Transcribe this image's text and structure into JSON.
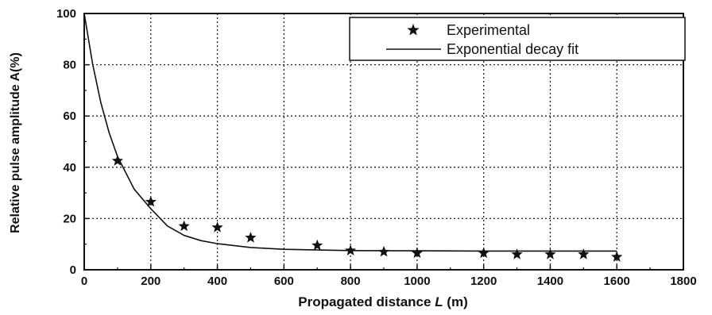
{
  "chart_data": {
    "type": "scatter",
    "title": "",
    "xlabel_prefix": "Propagated distance ",
    "xlabel_var": "L",
    "xlabel_suffix": " (m)",
    "ylabel": "Relative pulse amplitude A(%)",
    "xlim": [
      0,
      1800
    ],
    "ylim": [
      0,
      100
    ],
    "x_ticks": [
      0,
      200,
      400,
      600,
      800,
      1000,
      1200,
      1400,
      1600,
      1800
    ],
    "y_ticks": [
      0,
      20,
      40,
      60,
      80,
      100
    ],
    "grid": true,
    "grid_style": "dotted",
    "legend_position": "top-right",
    "series": [
      {
        "name": "Experimental",
        "marker": "star",
        "color": "#111111",
        "points": [
          {
            "x": 100,
            "y": 42.5
          },
          {
            "x": 200,
            "y": 26.5
          },
          {
            "x": 300,
            "y": 17
          },
          {
            "x": 400,
            "y": 16.5
          },
          {
            "x": 500,
            "y": 12.5
          },
          {
            "x": 700,
            "y": 9.5
          },
          {
            "x": 800,
            "y": 7.5
          },
          {
            "x": 900,
            "y": 7
          },
          {
            "x": 1000,
            "y": 6.5
          },
          {
            "x": 1200,
            "y": 6.5
          },
          {
            "x": 1300,
            "y": 6
          },
          {
            "x": 1400,
            "y": 6
          },
          {
            "x": 1500,
            "y": 6
          },
          {
            "x": 1600,
            "y": 5
          }
        ]
      },
      {
        "name": "Exponential decay fit",
        "style": "line",
        "color": "#111111",
        "points": [
          {
            "x": 0,
            "y": 100
          },
          {
            "x": 25,
            "y": 80.4
          },
          {
            "x": 50,
            "y": 65.2
          },
          {
            "x": 75,
            "y": 53.4
          },
          {
            "x": 100,
            "y": 44.2
          },
          {
            "x": 150,
            "y": 31.5
          },
          {
            "x": 200,
            "y": 23.8
          },
          {
            "x": 250,
            "y": 17.1
          },
          {
            "x": 300,
            "y": 13.4
          },
          {
            "x": 350,
            "y": 11.4
          },
          {
            "x": 400,
            "y": 10.2
          },
          {
            "x": 500,
            "y": 8.7
          },
          {
            "x": 600,
            "y": 8.0
          },
          {
            "x": 800,
            "y": 7.5
          },
          {
            "x": 1000,
            "y": 7.4
          },
          {
            "x": 1200,
            "y": 7.3
          },
          {
            "x": 1400,
            "y": 7.3
          },
          {
            "x": 1600,
            "y": 7.3
          }
        ]
      }
    ]
  }
}
